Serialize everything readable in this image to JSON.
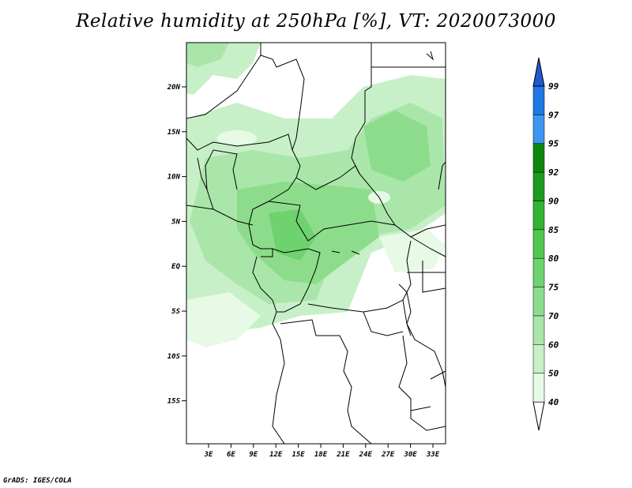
{
  "title": "Relative humidity at 250hPa [%], VT: 2020073000",
  "credit": "GrADS: IGES/COLA",
  "map": {
    "lat_labels": [
      "20N",
      "15N",
      "10N",
      "5N",
      "EQ",
      "5S",
      "10S",
      "15S"
    ],
    "lon_labels": [
      "3E",
      "6E",
      "9E",
      "12E",
      "15E",
      "18E",
      "21E",
      "24E",
      "27E",
      "30E",
      "33E"
    ]
  },
  "colorbar": {
    "levels": [
      "40",
      "50",
      "60",
      "70",
      "75",
      "80",
      "85",
      "90",
      "92",
      "95",
      "97",
      "99"
    ],
    "colors": [
      "#e6fae6",
      "#c8f0c8",
      "#aae6aa",
      "#8cdc8c",
      "#6ed26e",
      "#50c850",
      "#32b432",
      "#1e9b1e",
      "#0f870f",
      "#3c96f0",
      "#1e78e1",
      "#1e5ad2"
    ]
  }
}
